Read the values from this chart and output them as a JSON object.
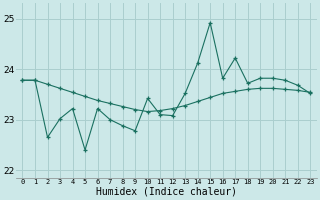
{
  "xlabel": "Humidex (Indice chaleur)",
  "bg_color": "#cce8e8",
  "line_color": "#1a7060",
  "grid_color": "#aacece",
  "xlim": [
    -0.5,
    23.5
  ],
  "ylim": [
    21.85,
    25.3
  ],
  "yticks": [
    22,
    23,
    24,
    25
  ],
  "xticks": [
    0,
    1,
    2,
    3,
    4,
    5,
    6,
    7,
    8,
    9,
    10,
    11,
    12,
    13,
    14,
    15,
    16,
    17,
    18,
    19,
    20,
    21,
    22,
    23
  ],
  "series1_x": [
    0,
    1,
    2,
    3,
    4,
    5,
    6,
    7,
    8,
    9,
    10,
    11,
    12,
    13,
    14,
    15,
    16,
    17,
    18,
    19,
    20,
    21,
    22,
    23
  ],
  "series1_y": [
    23.78,
    23.78,
    23.7,
    23.62,
    23.54,
    23.46,
    23.38,
    23.32,
    23.26,
    23.2,
    23.16,
    23.18,
    23.22,
    23.28,
    23.36,
    23.44,
    23.52,
    23.56,
    23.6,
    23.62,
    23.62,
    23.6,
    23.58,
    23.54
  ],
  "series2_x": [
    0,
    1,
    2,
    3,
    4,
    5,
    6,
    7,
    8,
    9,
    10,
    11,
    12,
    13,
    14,
    15,
    16,
    17,
    18,
    19,
    20,
    21,
    22,
    23
  ],
  "series2_y": [
    23.78,
    23.78,
    22.65,
    23.02,
    23.22,
    22.4,
    23.22,
    23.0,
    22.88,
    22.78,
    23.42,
    23.1,
    23.08,
    23.52,
    24.12,
    24.92,
    23.82,
    24.22,
    23.72,
    23.82,
    23.82,
    23.78,
    23.68,
    23.52
  ]
}
